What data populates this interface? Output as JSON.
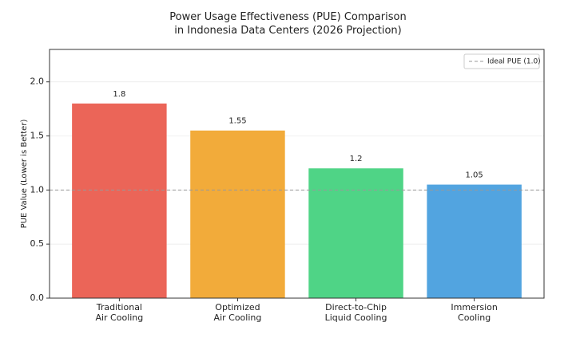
{
  "chart_data": {
    "type": "bar",
    "title": "Power Usage Effectiveness (PUE) Comparison\nin Indonesia Data Centers (2026 Projection)",
    "y_label": "PUE Value (Lower is Better)",
    "categories": [
      "Traditional\nAir Cooling",
      "Optimized\nAir Cooling",
      "Direct-to-Chip\nLiquid Cooling",
      "Immersion\nCooling"
    ],
    "values": [
      1.8,
      1.55,
      1.2,
      1.05
    ],
    "colors": [
      "#eb6558",
      "#f2ab3a",
      "#4fd486",
      "#52a4e0"
    ],
    "ylim": [
      0,
      2.3
    ],
    "yticks": [
      {
        "value": 0,
        "label": "0.0"
      },
      {
        "value": 0.5,
        "label": "0.5"
      },
      {
        "value": 1,
        "label": "1.0"
      },
      {
        "value": 1.5,
        "label": "1.5"
      },
      {
        "value": 2,
        "label": "2.0"
      }
    ],
    "grid": true,
    "reference_line": {
      "value": 1.0,
      "label": "Ideal PUE (1.0)",
      "color": "#999999"
    },
    "legend": "upper right"
  }
}
